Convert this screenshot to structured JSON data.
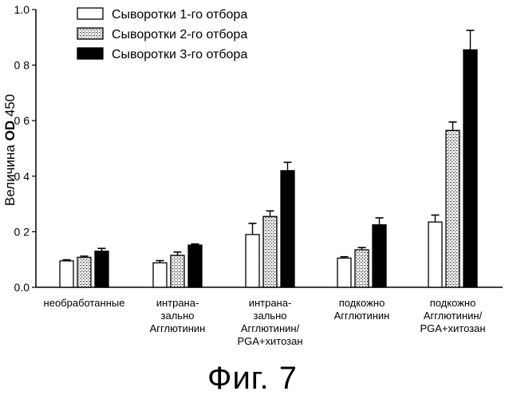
{
  "chart_data": {
    "type": "bar",
    "categories": [
      [
        "необработанные"
      ],
      [
        "интрана-",
        "зально",
        "Агглютинин"
      ],
      [
        "интрана-",
        "зально",
        "Агглютинин/",
        "PGA+хитозан"
      ],
      [
        "подкожно",
        "Агглютинин"
      ],
      [
        "подкожно",
        "Агглютинин/",
        "PGA+хитозан"
      ]
    ],
    "series": [
      {
        "name": "Сыворотки 1-го отбора",
        "values": [
          0.095,
          0.088,
          0.19,
          0.105,
          0.235
        ],
        "errors": [
          0.004,
          0.008,
          0.04,
          0.005,
          0.025
        ],
        "pattern": "white"
      },
      {
        "name": "Сыворотки 2-го отбора",
        "values": [
          0.108,
          0.115,
          0.255,
          0.135,
          0.565
        ],
        "errors": [
          0.004,
          0.012,
          0.02,
          0.008,
          0.03
        ],
        "pattern": "stipple"
      },
      {
        "name": "Сыворотки 3-го отбора",
        "values": [
          0.13,
          0.152,
          0.42,
          0.225,
          0.855
        ],
        "errors": [
          0.01,
          0.004,
          0.03,
          0.025,
          0.07
        ],
        "pattern": "black"
      }
    ],
    "ylabel_prefix": "Величина ",
    "ylabel_bold": "OD",
    "ylabel_suffix": " 450",
    "yticks": [
      "0.0",
      "0 2",
      "0 4",
      "0 6",
      "0 8",
      "1.0"
    ],
    "ylim": [
      0,
      1.0
    ],
    "legend_position": "top-left",
    "grid": false
  },
  "figure_caption": "Фиг. 7"
}
